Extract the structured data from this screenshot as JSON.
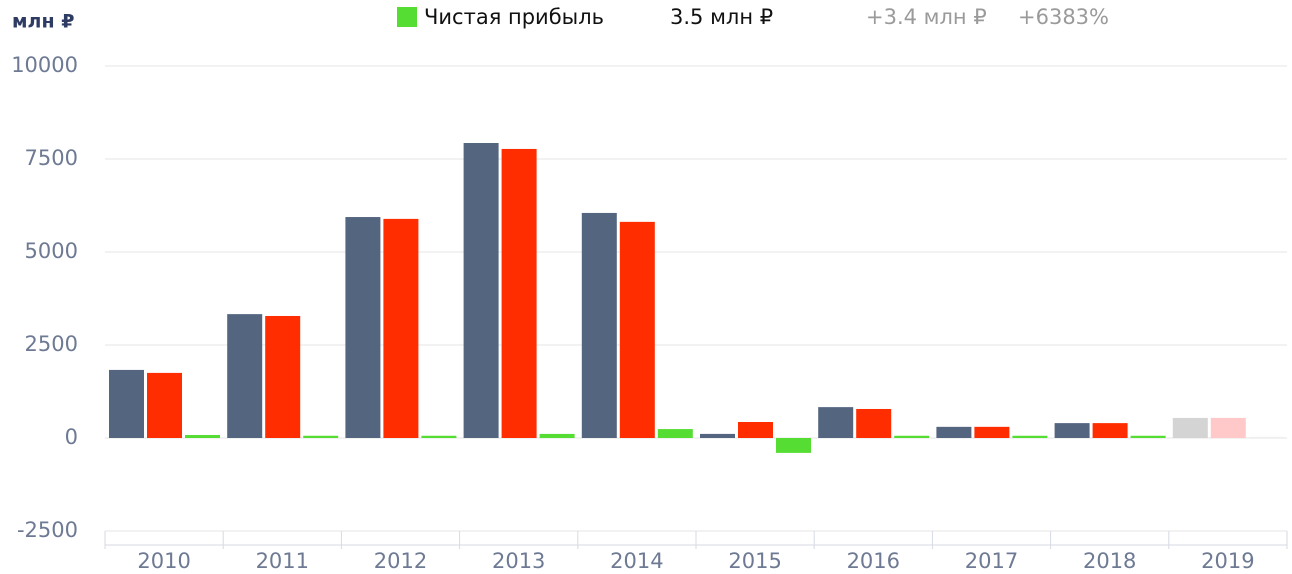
{
  "chart_data": {
    "type": "bar",
    "y_label": "млн ₽",
    "categories": [
      "2010",
      "2011",
      "2012",
      "2013",
      "2014",
      "2015",
      "2016",
      "2017",
      "2018",
      "2019"
    ],
    "series": [
      {
        "color": "#546580",
        "colors": [
          "#546580",
          "#546580",
          "#546580",
          "#546580",
          "#546580",
          "#546580",
          "#546580",
          "#546580",
          "#546580",
          "#d4d4d4"
        ],
        "values": [
          1830,
          3330,
          5940,
          7930,
          6050,
          110,
          830,
          300,
          400,
          540
        ]
      },
      {
        "color": "#ff2d00",
        "colors": [
          "#ff2d00",
          "#ff2d00",
          "#ff2d00",
          "#ff2d00",
          "#ff2d00",
          "#ff2d00",
          "#ff2d00",
          "#ff2d00",
          "#ff2d00",
          "#ffc9c9"
        ],
        "values": [
          1750,
          3280,
          5890,
          7770,
          5810,
          430,
          780,
          300,
          400,
          540
        ]
      },
      {
        "name": "Чистая прибыль",
        "color": "#55dd33",
        "colors": [
          "#55dd33",
          "#55dd33",
          "#55dd33",
          "#55dd33",
          "#55dd33",
          "#55dd33",
          "#55dd33",
          "#55dd33",
          "#55dd33",
          "#eeeeee"
        ],
        "values": [
          80,
          60,
          60,
          110,
          240,
          -400,
          60,
          60,
          60,
          30
        ]
      }
    ],
    "legend": {
      "value": "3.5 млн ₽",
      "change": "+3.4 млн ₽",
      "change_pct": "+6383%"
    },
    "ylim": [
      -2500,
      10000
    ],
    "yticks": [
      -2500,
      0,
      2500,
      5000,
      7500,
      10000
    ],
    "grid": true
  }
}
